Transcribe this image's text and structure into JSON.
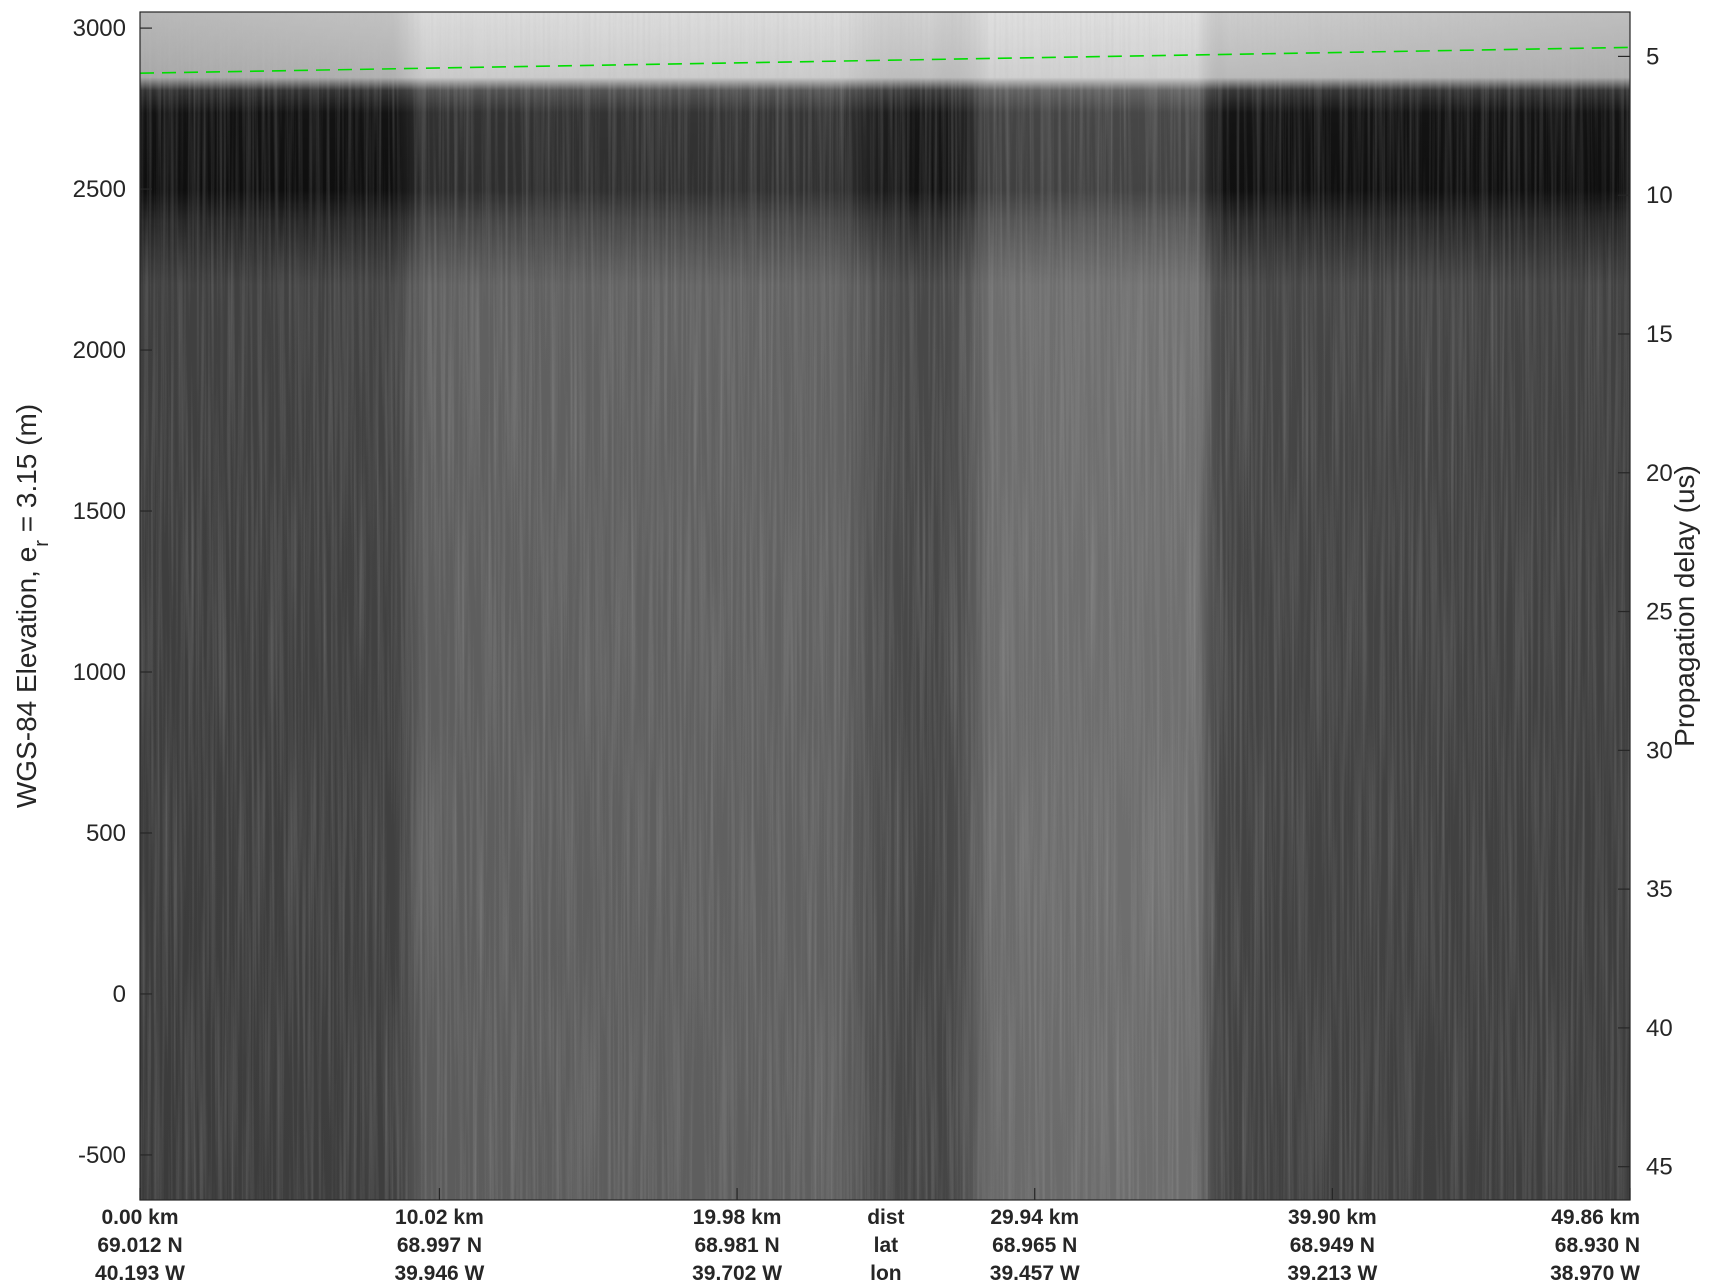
{
  "chart_data": {
    "type": "heatmap",
    "title": "",
    "xlabel": "",
    "ylabel_main": "WGS-84 Elevation, e",
    "ylabel_sub": "r",
    "ylabel_rest": " = 3.15 (m)",
    "y2label": "Propagation delay (us)",
    "ylim": [
      -640,
      3050
    ],
    "y_ticks": [
      3000,
      2500,
      2000,
      1500,
      1000,
      500,
      0,
      -500
    ],
    "y_tick_labels": [
      "3000",
      "2500",
      "2000",
      "1500",
      "1000",
      "500",
      "0",
      "-500"
    ],
    "y2lim": [
      3.4,
      46.2
    ],
    "y2_ticks": [
      5,
      10,
      15,
      20,
      25,
      30,
      35,
      40,
      45
    ],
    "y2_tick_labels": [
      "5",
      "10",
      "15",
      "20",
      "25",
      "30",
      "35",
      "40",
      "45"
    ],
    "xlim": [
      0,
      49.86
    ],
    "x_ticks": [
      0,
      10.02,
      19.98,
      29.94,
      39.9,
      49.86
    ],
    "dist_labels": [
      "0.00 km",
      "10.02 km",
      "19.98 km",
      "29.94 km",
      "39.90 km",
      "49.86 km"
    ],
    "lat_labels": [
      "69.012 N",
      "68.997 N",
      "68.981 N",
      "68.965 N",
      "68.949 N",
      "68.930 N"
    ],
    "lon_labels": [
      "40.193 W",
      "39.946 W",
      "39.702 W",
      "39.457 W",
      "39.213 W",
      "38.970 W"
    ],
    "row_names": [
      "dist",
      "lat",
      "lon"
    ],
    "surface_line": {
      "color": "#00dd00",
      "x": [
        0,
        49.86
      ],
      "y": [
        2860,
        2940
      ]
    },
    "surface_band_elevation": [
      2870,
      2790,
      2400
    ],
    "colormap": "gray"
  }
}
